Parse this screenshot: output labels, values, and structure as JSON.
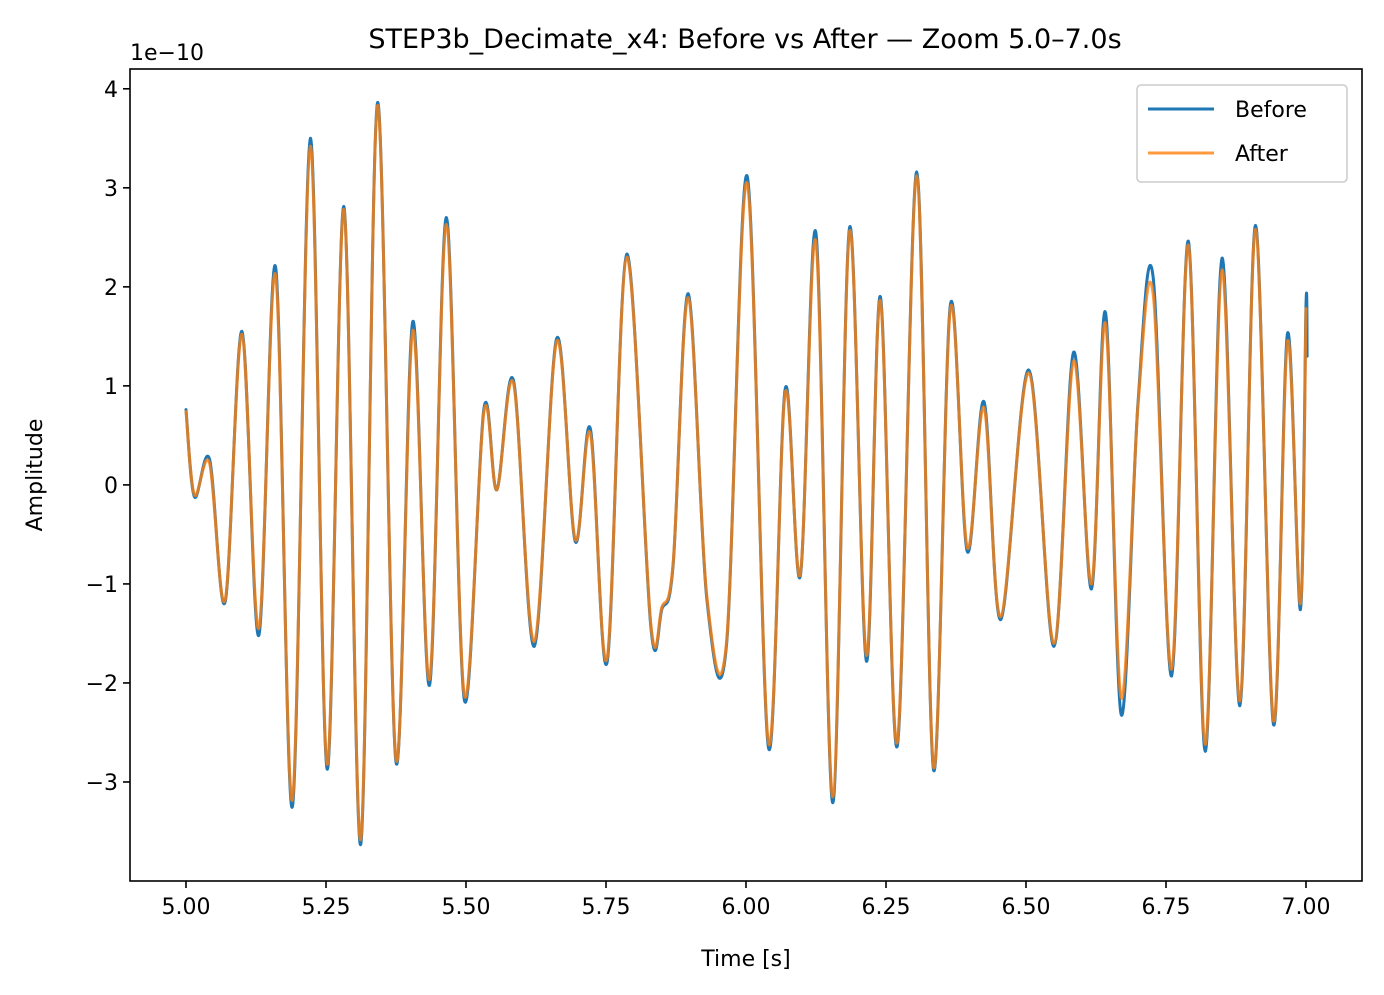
{
  "chart_data": {
    "type": "line",
    "title": "STEP3b_Decimate_x4: Before vs After — Zoom 5.0–7.0s",
    "xlabel": "Time [s]",
    "ylabel": "Amplitude",
    "offset_text": "1e−10",
    "xlim": [
      4.9,
      7.1
    ],
    "ylim": [
      -4.0,
      4.2
    ],
    "xticks": [
      5.0,
      5.25,
      5.5,
      5.75,
      6.0,
      6.25,
      6.5,
      6.75,
      7.0
    ],
    "xtick_labels": [
      "5.00",
      "5.25",
      "5.50",
      "5.75",
      "6.00",
      "6.25",
      "6.50",
      "6.75",
      "7.00"
    ],
    "yticks": [
      -3,
      -2,
      -1,
      0,
      1,
      2,
      3,
      4
    ],
    "ytick_labels": [
      "−3",
      "−2",
      "−1",
      "0",
      "1",
      "2",
      "3",
      "4"
    ],
    "grid": false,
    "legend": {
      "position": "top-right"
    },
    "series": [
      {
        "name": "Before",
        "color": "#1f77b4",
        "points": [
          [
            5.0,
            0.76
          ],
          [
            5.015,
            -0.12
          ],
          [
            5.042,
            0.26
          ],
          [
            5.07,
            -1.18
          ],
          [
            5.1,
            1.55
          ],
          [
            5.13,
            -1.52
          ],
          [
            5.16,
            2.2
          ],
          [
            5.19,
            -3.25
          ],
          [
            5.222,
            3.5
          ],
          [
            5.252,
            -2.87
          ],
          [
            5.282,
            2.81
          ],
          [
            5.312,
            -3.63
          ],
          [
            5.342,
            3.86
          ],
          [
            5.375,
            -2.8
          ],
          [
            5.405,
            1.65
          ],
          [
            5.435,
            -2.02
          ],
          [
            5.465,
            2.7
          ],
          [
            5.497,
            -2.17
          ],
          [
            5.532,
            0.77
          ],
          [
            5.555,
            -0.05
          ],
          [
            5.585,
            1.05
          ],
          [
            5.622,
            -1.63
          ],
          [
            5.662,
            1.48
          ],
          [
            5.695,
            -0.57
          ],
          [
            5.722,
            0.57
          ],
          [
            5.752,
            -1.79
          ],
          [
            5.787,
            2.33
          ],
          [
            5.83,
            -1.43
          ],
          [
            5.85,
            -1.25
          ],
          [
            5.87,
            -0.8
          ],
          [
            5.897,
            1.93
          ],
          [
            5.93,
            -1.15
          ],
          [
            5.965,
            -1.63
          ],
          [
            6.002,
            3.12
          ],
          [
            6.04,
            -2.65
          ],
          [
            6.07,
            0.97
          ],
          [
            6.097,
            -0.92
          ],
          [
            6.125,
            2.54
          ],
          [
            6.155,
            -3.21
          ],
          [
            6.185,
            2.6
          ],
          [
            6.215,
            -1.78
          ],
          [
            6.24,
            1.9
          ],
          [
            6.27,
            -2.64
          ],
          [
            6.305,
            3.16
          ],
          [
            6.335,
            -2.88
          ],
          [
            6.365,
            1.82
          ],
          [
            6.395,
            -0.67
          ],
          [
            6.425,
            0.84
          ],
          [
            6.455,
            -1.36
          ],
          [
            6.505,
            1.16
          ],
          [
            6.55,
            -1.63
          ],
          [
            6.585,
            1.34
          ],
          [
            6.617,
            -1.05
          ],
          [
            6.642,
            1.74
          ],
          [
            6.67,
            -2.32
          ],
          [
            6.7,
            0.83
          ],
          [
            6.727,
            2.1
          ],
          [
            6.76,
            -1.93
          ],
          [
            6.79,
            2.46
          ],
          [
            6.82,
            -2.69
          ],
          [
            6.85,
            2.29
          ],
          [
            6.882,
            -2.23
          ],
          [
            6.91,
            2.62
          ],
          [
            6.942,
            -2.42
          ],
          [
            6.967,
            1.53
          ],
          [
            6.99,
            -1.26
          ],
          [
            7.0,
            1.82
          ],
          [
            7.002,
            1.3
          ]
        ]
      },
      {
        "name": "After",
        "color": "#ff7f0e",
        "points": [
          [
            5.0,
            0.74
          ],
          [
            5.015,
            -0.1
          ],
          [
            5.042,
            0.22
          ],
          [
            5.07,
            -1.16
          ],
          [
            5.1,
            1.52
          ],
          [
            5.13,
            -1.45
          ],
          [
            5.16,
            2.12
          ],
          [
            5.19,
            -3.18
          ],
          [
            5.222,
            3.42
          ],
          [
            5.252,
            -2.82
          ],
          [
            5.282,
            2.78
          ],
          [
            5.312,
            -3.58
          ],
          [
            5.342,
            3.83
          ],
          [
            5.375,
            -2.77
          ],
          [
            5.405,
            1.56
          ],
          [
            5.435,
            -1.96
          ],
          [
            5.465,
            2.63
          ],
          [
            5.497,
            -2.12
          ],
          [
            5.532,
            0.74
          ],
          [
            5.555,
            -0.05
          ],
          [
            5.585,
            1.02
          ],
          [
            5.622,
            -1.58
          ],
          [
            5.662,
            1.45
          ],
          [
            5.695,
            -0.55
          ],
          [
            5.722,
            0.52
          ],
          [
            5.752,
            -1.75
          ],
          [
            5.787,
            2.3
          ],
          [
            5.83,
            -1.4
          ],
          [
            5.85,
            -1.23
          ],
          [
            5.87,
            -0.78
          ],
          [
            5.897,
            1.89
          ],
          [
            5.93,
            -1.12
          ],
          [
            5.965,
            -1.6
          ],
          [
            6.002,
            3.05
          ],
          [
            6.04,
            -2.6
          ],
          [
            6.07,
            0.93
          ],
          [
            6.097,
            -0.9
          ],
          [
            6.125,
            2.45
          ],
          [
            6.155,
            -3.15
          ],
          [
            6.185,
            2.56
          ],
          [
            6.215,
            -1.72
          ],
          [
            6.24,
            1.86
          ],
          [
            6.27,
            -2.6
          ],
          [
            6.305,
            3.12
          ],
          [
            6.335,
            -2.85
          ],
          [
            6.365,
            1.78
          ],
          [
            6.395,
            -0.63
          ],
          [
            6.425,
            0.78
          ],
          [
            6.455,
            -1.33
          ],
          [
            6.505,
            1.13
          ],
          [
            6.55,
            -1.6
          ],
          [
            6.585,
            1.25
          ],
          [
            6.617,
            -1.0
          ],
          [
            6.642,
            1.63
          ],
          [
            6.67,
            -2.15
          ],
          [
            6.7,
            0.8
          ],
          [
            6.727,
            1.93
          ],
          [
            6.76,
            -1.86
          ],
          [
            6.79,
            2.42
          ],
          [
            6.82,
            -2.62
          ],
          [
            6.85,
            2.17
          ],
          [
            6.882,
            -2.18
          ],
          [
            6.91,
            2.58
          ],
          [
            6.942,
            -2.38
          ],
          [
            6.967,
            1.45
          ],
          [
            6.99,
            -1.2
          ],
          [
            7.0,
            1.78
          ]
        ]
      }
    ]
  }
}
